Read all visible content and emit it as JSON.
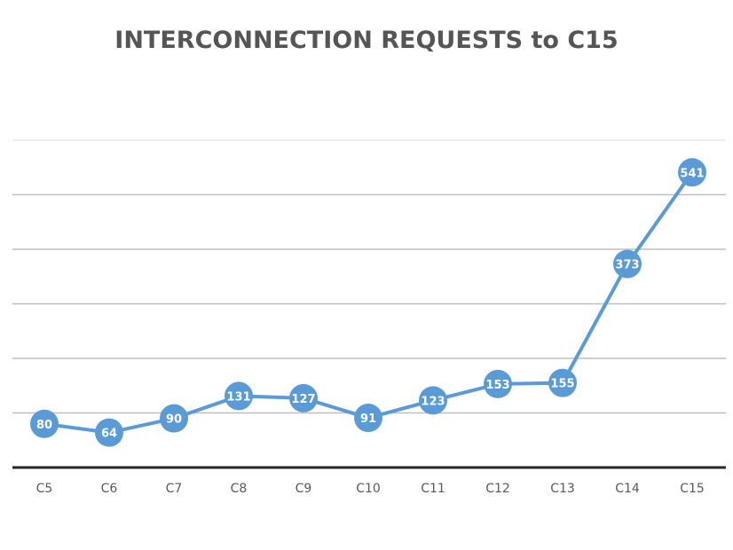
{
  "chart_data": {
    "type": "line",
    "title": "INTERCONNECTION REQUESTS to C15",
    "xlabel": "",
    "ylabel": "",
    "categories": [
      "C5",
      "C6",
      "C7",
      "C8",
      "C9",
      "C10",
      "C11",
      "C12",
      "C13",
      "C14",
      "C15"
    ],
    "series": [
      {
        "name": "Interconnection Requests",
        "values": [
          80,
          64,
          90,
          131,
          127,
          91,
          123,
          153,
          155,
          373,
          541
        ]
      }
    ],
    "ylim": [
      0,
      600
    ],
    "gridlines": [
      100,
      200,
      300,
      400,
      500,
      600
    ],
    "grid": true,
    "y_tick_labels_visible": false,
    "legend": "none",
    "data_labels": true
  },
  "style": {
    "line_color": "#5b9bd5",
    "marker_color": "#5b9bd5",
    "label_color": "#ffffff",
    "grid_color": "#bfbfbf",
    "axis_color": "#262626",
    "title_color": "#555555"
  }
}
